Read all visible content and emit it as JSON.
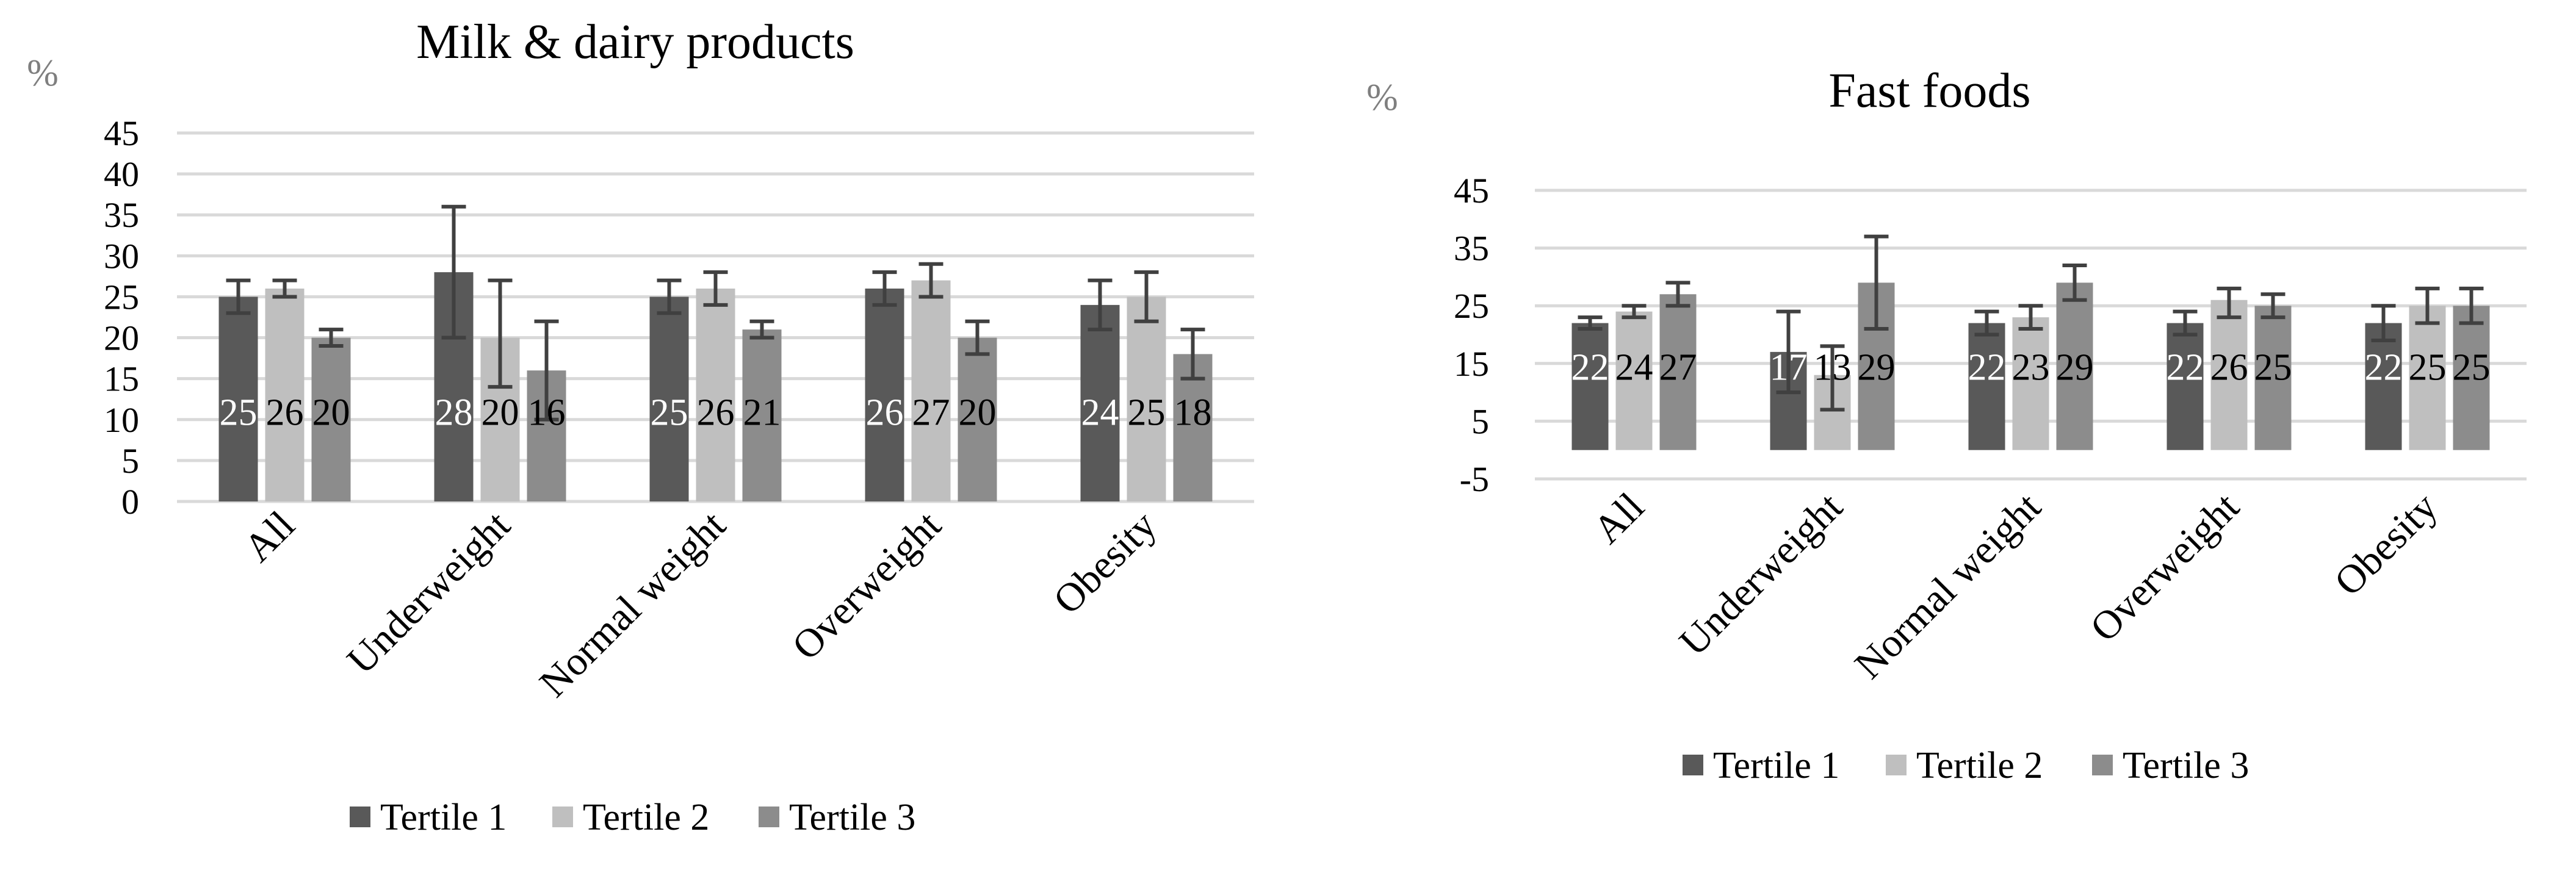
{
  "colors": {
    "tertile1": "#595959",
    "tertile2": "#bfbfbf",
    "tertile3": "#8c8c8c",
    "grid": "#d9d9d9",
    "text": "#000000",
    "unit": "#7f7f7f",
    "errorbar": "#404040",
    "label_on_dark": "#ffffff"
  },
  "chart_data": [
    {
      "type": "bar",
      "title": "Milk & dairy products",
      "ylabel": "%",
      "xlabel": "",
      "ylim": [
        0,
        45
      ],
      "yticks": [
        0,
        5,
        10,
        15,
        20,
        25,
        30,
        35,
        40,
        45
      ],
      "grid": true,
      "legend_position": "bottom",
      "categories": [
        "All",
        "Underweight",
        "Normal weight",
        "Overweight",
        "Obesity"
      ],
      "series": [
        {
          "name": "Tertile 1",
          "values": [
            25,
            28,
            25,
            26,
            24
          ],
          "err_low": [
            23,
            20,
            23,
            24,
            21
          ],
          "err_high": [
            27,
            36,
            27,
            28,
            27
          ]
        },
        {
          "name": "Tertile 2",
          "values": [
            26,
            20,
            26,
            27,
            25
          ],
          "err_low": [
            25,
            14,
            24,
            25,
            22
          ],
          "err_high": [
            27,
            27,
            28,
            29,
            28
          ]
        },
        {
          "name": "Tertile 3",
          "values": [
            20,
            16,
            21,
            20,
            18
          ],
          "err_low": [
            19,
            10,
            20,
            18,
            15
          ],
          "err_high": [
            21,
            22,
            22,
            22,
            21
          ]
        }
      ]
    },
    {
      "type": "bar",
      "title": "Fast foods",
      "ylabel": "%",
      "xlabel": "",
      "ylim": [
        -5,
        45
      ],
      "yticks": [
        -5,
        5,
        15,
        25,
        35,
        45
      ],
      "grid": true,
      "legend_position": "bottom",
      "categories": [
        "All",
        "Underweight",
        "Normal weight",
        "Overweight",
        "Obesity"
      ],
      "series": [
        {
          "name": "Tertile 1",
          "values": [
            22,
            17,
            22,
            22,
            22
          ],
          "err_low": [
            21,
            10,
            20,
            20,
            19
          ],
          "err_high": [
            23,
            24,
            24,
            24,
            25
          ]
        },
        {
          "name": "Tertile 2",
          "values": [
            24,
            13,
            23,
            26,
            25
          ],
          "err_low": [
            23,
            7,
            21,
            23,
            22
          ],
          "err_high": [
            25,
            18,
            25,
            28,
            28
          ]
        },
        {
          "name": "Tertile 3",
          "values": [
            27,
            29,
            29,
            25,
            25
          ],
          "err_low": [
            25,
            21,
            26,
            23,
            22
          ],
          "err_high": [
            29,
            37,
            32,
            27,
            28
          ]
        }
      ]
    }
  ]
}
